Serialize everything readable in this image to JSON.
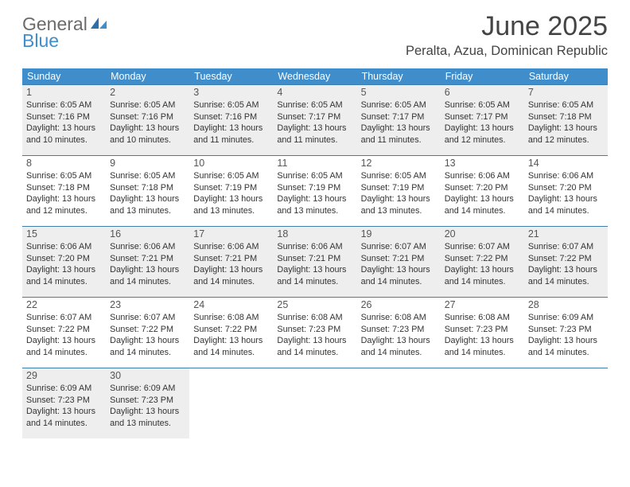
{
  "logo": {
    "general": "General",
    "blue": "Blue"
  },
  "title": "June 2025",
  "location": "Peralta, Azua, Dominican Republic",
  "colors": {
    "header_bg": "#3f8ecb",
    "border": "#3f7fb0",
    "shaded": "#eeeeee",
    "text": "#333333",
    "title_text": "#444444",
    "logo_gray": "#6b6b6b",
    "logo_blue": "#3f8ecb"
  },
  "day_headers": [
    "Sunday",
    "Monday",
    "Tuesday",
    "Wednesday",
    "Thursday",
    "Friday",
    "Saturday"
  ],
  "weeks": [
    [
      {
        "n": "1",
        "shaded": true,
        "sr": "Sunrise: 6:05 AM",
        "ss": "Sunset: 7:16 PM",
        "d1": "Daylight: 13 hours",
        "d2": "and 10 minutes."
      },
      {
        "n": "2",
        "shaded": true,
        "sr": "Sunrise: 6:05 AM",
        "ss": "Sunset: 7:16 PM",
        "d1": "Daylight: 13 hours",
        "d2": "and 10 minutes."
      },
      {
        "n": "3",
        "shaded": true,
        "sr": "Sunrise: 6:05 AM",
        "ss": "Sunset: 7:16 PM",
        "d1": "Daylight: 13 hours",
        "d2": "and 11 minutes."
      },
      {
        "n": "4",
        "shaded": true,
        "sr": "Sunrise: 6:05 AM",
        "ss": "Sunset: 7:17 PM",
        "d1": "Daylight: 13 hours",
        "d2": "and 11 minutes."
      },
      {
        "n": "5",
        "shaded": true,
        "sr": "Sunrise: 6:05 AM",
        "ss": "Sunset: 7:17 PM",
        "d1": "Daylight: 13 hours",
        "d2": "and 11 minutes."
      },
      {
        "n": "6",
        "shaded": true,
        "sr": "Sunrise: 6:05 AM",
        "ss": "Sunset: 7:17 PM",
        "d1": "Daylight: 13 hours",
        "d2": "and 12 minutes."
      },
      {
        "n": "7",
        "shaded": true,
        "sr": "Sunrise: 6:05 AM",
        "ss": "Sunset: 7:18 PM",
        "d1": "Daylight: 13 hours",
        "d2": "and 12 minutes."
      }
    ],
    [
      {
        "n": "8",
        "shaded": false,
        "sr": "Sunrise: 6:05 AM",
        "ss": "Sunset: 7:18 PM",
        "d1": "Daylight: 13 hours",
        "d2": "and 12 minutes."
      },
      {
        "n": "9",
        "shaded": false,
        "sr": "Sunrise: 6:05 AM",
        "ss": "Sunset: 7:18 PM",
        "d1": "Daylight: 13 hours",
        "d2": "and 13 minutes."
      },
      {
        "n": "10",
        "shaded": false,
        "sr": "Sunrise: 6:05 AM",
        "ss": "Sunset: 7:19 PM",
        "d1": "Daylight: 13 hours",
        "d2": "and 13 minutes."
      },
      {
        "n": "11",
        "shaded": false,
        "sr": "Sunrise: 6:05 AM",
        "ss": "Sunset: 7:19 PM",
        "d1": "Daylight: 13 hours",
        "d2": "and 13 minutes."
      },
      {
        "n": "12",
        "shaded": false,
        "sr": "Sunrise: 6:05 AM",
        "ss": "Sunset: 7:19 PM",
        "d1": "Daylight: 13 hours",
        "d2": "and 13 minutes."
      },
      {
        "n": "13",
        "shaded": false,
        "sr": "Sunrise: 6:06 AM",
        "ss": "Sunset: 7:20 PM",
        "d1": "Daylight: 13 hours",
        "d2": "and 14 minutes."
      },
      {
        "n": "14",
        "shaded": false,
        "sr": "Sunrise: 6:06 AM",
        "ss": "Sunset: 7:20 PM",
        "d1": "Daylight: 13 hours",
        "d2": "and 14 minutes."
      }
    ],
    [
      {
        "n": "15",
        "shaded": true,
        "sr": "Sunrise: 6:06 AM",
        "ss": "Sunset: 7:20 PM",
        "d1": "Daylight: 13 hours",
        "d2": "and 14 minutes."
      },
      {
        "n": "16",
        "shaded": true,
        "sr": "Sunrise: 6:06 AM",
        "ss": "Sunset: 7:21 PM",
        "d1": "Daylight: 13 hours",
        "d2": "and 14 minutes."
      },
      {
        "n": "17",
        "shaded": true,
        "sr": "Sunrise: 6:06 AM",
        "ss": "Sunset: 7:21 PM",
        "d1": "Daylight: 13 hours",
        "d2": "and 14 minutes."
      },
      {
        "n": "18",
        "shaded": true,
        "sr": "Sunrise: 6:06 AM",
        "ss": "Sunset: 7:21 PM",
        "d1": "Daylight: 13 hours",
        "d2": "and 14 minutes."
      },
      {
        "n": "19",
        "shaded": true,
        "sr": "Sunrise: 6:07 AM",
        "ss": "Sunset: 7:21 PM",
        "d1": "Daylight: 13 hours",
        "d2": "and 14 minutes."
      },
      {
        "n": "20",
        "shaded": true,
        "sr": "Sunrise: 6:07 AM",
        "ss": "Sunset: 7:22 PM",
        "d1": "Daylight: 13 hours",
        "d2": "and 14 minutes."
      },
      {
        "n": "21",
        "shaded": true,
        "sr": "Sunrise: 6:07 AM",
        "ss": "Sunset: 7:22 PM",
        "d1": "Daylight: 13 hours",
        "d2": "and 14 minutes."
      }
    ],
    [
      {
        "n": "22",
        "shaded": false,
        "sr": "Sunrise: 6:07 AM",
        "ss": "Sunset: 7:22 PM",
        "d1": "Daylight: 13 hours",
        "d2": "and 14 minutes."
      },
      {
        "n": "23",
        "shaded": false,
        "sr": "Sunrise: 6:07 AM",
        "ss": "Sunset: 7:22 PM",
        "d1": "Daylight: 13 hours",
        "d2": "and 14 minutes."
      },
      {
        "n": "24",
        "shaded": false,
        "sr": "Sunrise: 6:08 AM",
        "ss": "Sunset: 7:22 PM",
        "d1": "Daylight: 13 hours",
        "d2": "and 14 minutes."
      },
      {
        "n": "25",
        "shaded": false,
        "sr": "Sunrise: 6:08 AM",
        "ss": "Sunset: 7:23 PM",
        "d1": "Daylight: 13 hours",
        "d2": "and 14 minutes."
      },
      {
        "n": "26",
        "shaded": false,
        "sr": "Sunrise: 6:08 AM",
        "ss": "Sunset: 7:23 PM",
        "d1": "Daylight: 13 hours",
        "d2": "and 14 minutes."
      },
      {
        "n": "27",
        "shaded": false,
        "sr": "Sunrise: 6:08 AM",
        "ss": "Sunset: 7:23 PM",
        "d1": "Daylight: 13 hours",
        "d2": "and 14 minutes."
      },
      {
        "n": "28",
        "shaded": false,
        "sr": "Sunrise: 6:09 AM",
        "ss": "Sunset: 7:23 PM",
        "d1": "Daylight: 13 hours",
        "d2": "and 14 minutes."
      }
    ],
    [
      {
        "n": "29",
        "shaded": true,
        "sr": "Sunrise: 6:09 AM",
        "ss": "Sunset: 7:23 PM",
        "d1": "Daylight: 13 hours",
        "d2": "and 14 minutes."
      },
      {
        "n": "30",
        "shaded": true,
        "sr": "Sunrise: 6:09 AM",
        "ss": "Sunset: 7:23 PM",
        "d1": "Daylight: 13 hours",
        "d2": "and 13 minutes."
      },
      {
        "empty": true
      },
      {
        "empty": true
      },
      {
        "empty": true
      },
      {
        "empty": true
      },
      {
        "empty": true
      }
    ]
  ]
}
